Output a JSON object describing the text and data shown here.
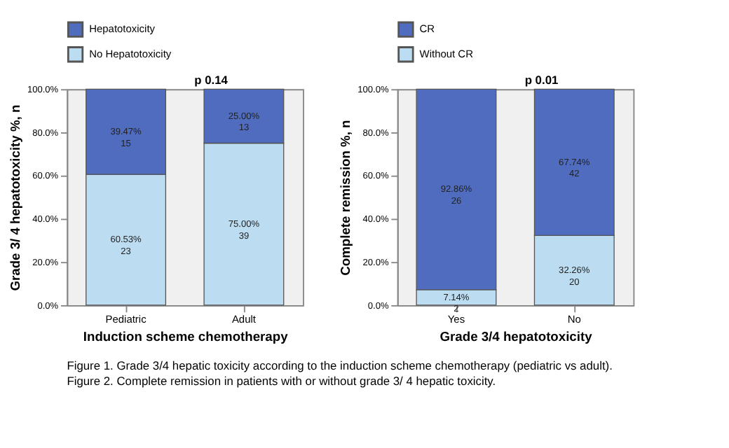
{
  "chart_data": [
    {
      "type": "bar",
      "stacked": true,
      "categories": [
        "Pediatric",
        "Adult"
      ],
      "xlabel": "Induction scheme chemotherapy",
      "ylabel": "Grade 3/ 4 hepatotoxicity  %, n",
      "series": [
        {
          "name": "No Hepatotoxicity",
          "color": "#bcdcf2",
          "values": [
            60.53,
            75.0
          ],
          "value_labels": [
            "60.53%\n23",
            "75.00%\n39"
          ]
        },
        {
          "name": "Hepatotoxicity",
          "color": "#4f6cbf",
          "values": [
            39.47,
            25.0
          ],
          "value_labels": [
            "39.47%\n15",
            "25.00%\n13"
          ]
        }
      ],
      "ylim": [
        0,
        100
      ],
      "yticks": [
        {
          "value": 0,
          "label": "0.0%"
        },
        {
          "value": 20,
          "label": "20.0%"
        },
        {
          "value": 40,
          "label": "40.0%"
        },
        {
          "value": 60,
          "label": "60.0%"
        },
        {
          "value": 80,
          "label": "80.0%"
        },
        {
          "value": 100,
          "label": "100.0%"
        }
      ],
      "legend": "top",
      "grid": false,
      "annotations": [
        "p 0.14",
        "Figure 1. Grade 3/4 hepatic toxicity according to the induction scheme chemotherapy (pediatric vs adult)."
      ]
    },
    {
      "type": "bar",
      "stacked": true,
      "categories": [
        "Yes",
        "No"
      ],
      "xlabel": "Grade 3/4 hepatotoxicity",
      "ylabel": "Complete remission %, n",
      "series": [
        {
          "name": "Without CR",
          "color": "#bcdcf2",
          "values": [
            7.14,
            32.26
          ],
          "value_labels": [
            "7.14%\n2",
            "32.26%\n20"
          ]
        },
        {
          "name": "CR",
          "color": "#4f6cbf",
          "values": [
            92.86,
            67.74
          ],
          "value_labels": [
            "92.86%\n26",
            "67.74%\n42"
          ]
        }
      ],
      "ylim": [
        0,
        100
      ],
      "yticks": [
        {
          "value": 0,
          "label": "0.0%"
        },
        {
          "value": 20,
          "label": "20.0%"
        },
        {
          "value": 40,
          "label": "40.0%"
        },
        {
          "value": 60,
          "label": "60.0%"
        },
        {
          "value": 80,
          "label": "80.0%"
        },
        {
          "value": 100,
          "label": "100.0%"
        }
      ],
      "legend": "top",
      "grid": false,
      "annotations": [
        "p 0.01",
        "Figure 2. Complete remission in patients with or without  grade 3/ 4 hepatic toxicity."
      ]
    }
  ]
}
